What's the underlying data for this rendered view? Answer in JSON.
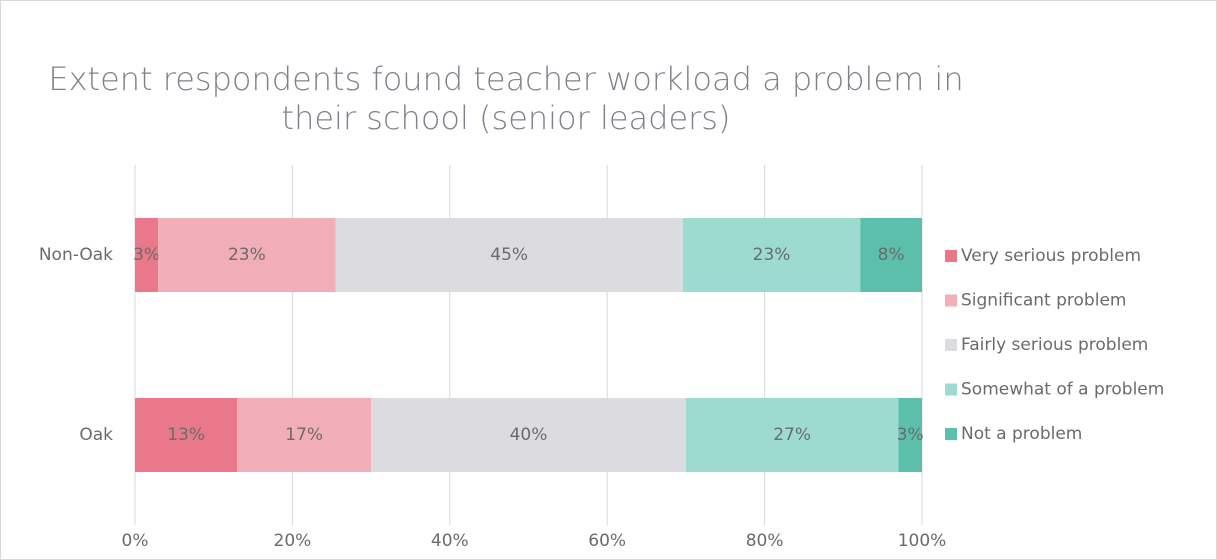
{
  "chart_data": {
    "type": "bar",
    "orientation": "horizontal",
    "stacked": "percent",
    "title": "Extent respondents found teacher workload a problem in their school (senior leaders)",
    "categories": [
      "Non-Oak",
      "Oak"
    ],
    "series": [
      {
        "name": "Very serious problem",
        "color": "#e8788a",
        "values": [
          3,
          13
        ],
        "value_labels": [
          "3%",
          "13%"
        ]
      },
      {
        "name": "Significant problem",
        "color": "#f2aeb8",
        "values": [
          23,
          17
        ],
        "value_labels": [
          "23%",
          "17%"
        ]
      },
      {
        "name": "Fairly serious problem",
        "color": "#dcdce0",
        "values": [
          45,
          40
        ],
        "value_labels": [
          "45%",
          "40%"
        ]
      },
      {
        "name": "Somewhat of a problem",
        "color": "#9ddbd0",
        "values": [
          23,
          27
        ],
        "value_labels": [
          "23%",
          "27%"
        ]
      },
      {
        "name": "Not a problem",
        "color": "#5bbfab",
        "values": [
          8,
          3
        ],
        "value_labels": [
          "8%",
          "3%"
        ]
      }
    ],
    "xlim": [
      0,
      100
    ],
    "xticks": [
      {
        "value": 0,
        "label": "0%"
      },
      {
        "value": 20,
        "label": "20%"
      },
      {
        "value": 40,
        "label": "40%"
      },
      {
        "value": 60,
        "label": "60%"
      },
      {
        "value": 80,
        "label": "80%"
      },
      {
        "value": 100,
        "label": "100%"
      }
    ],
    "grid": true,
    "legend": "right"
  }
}
